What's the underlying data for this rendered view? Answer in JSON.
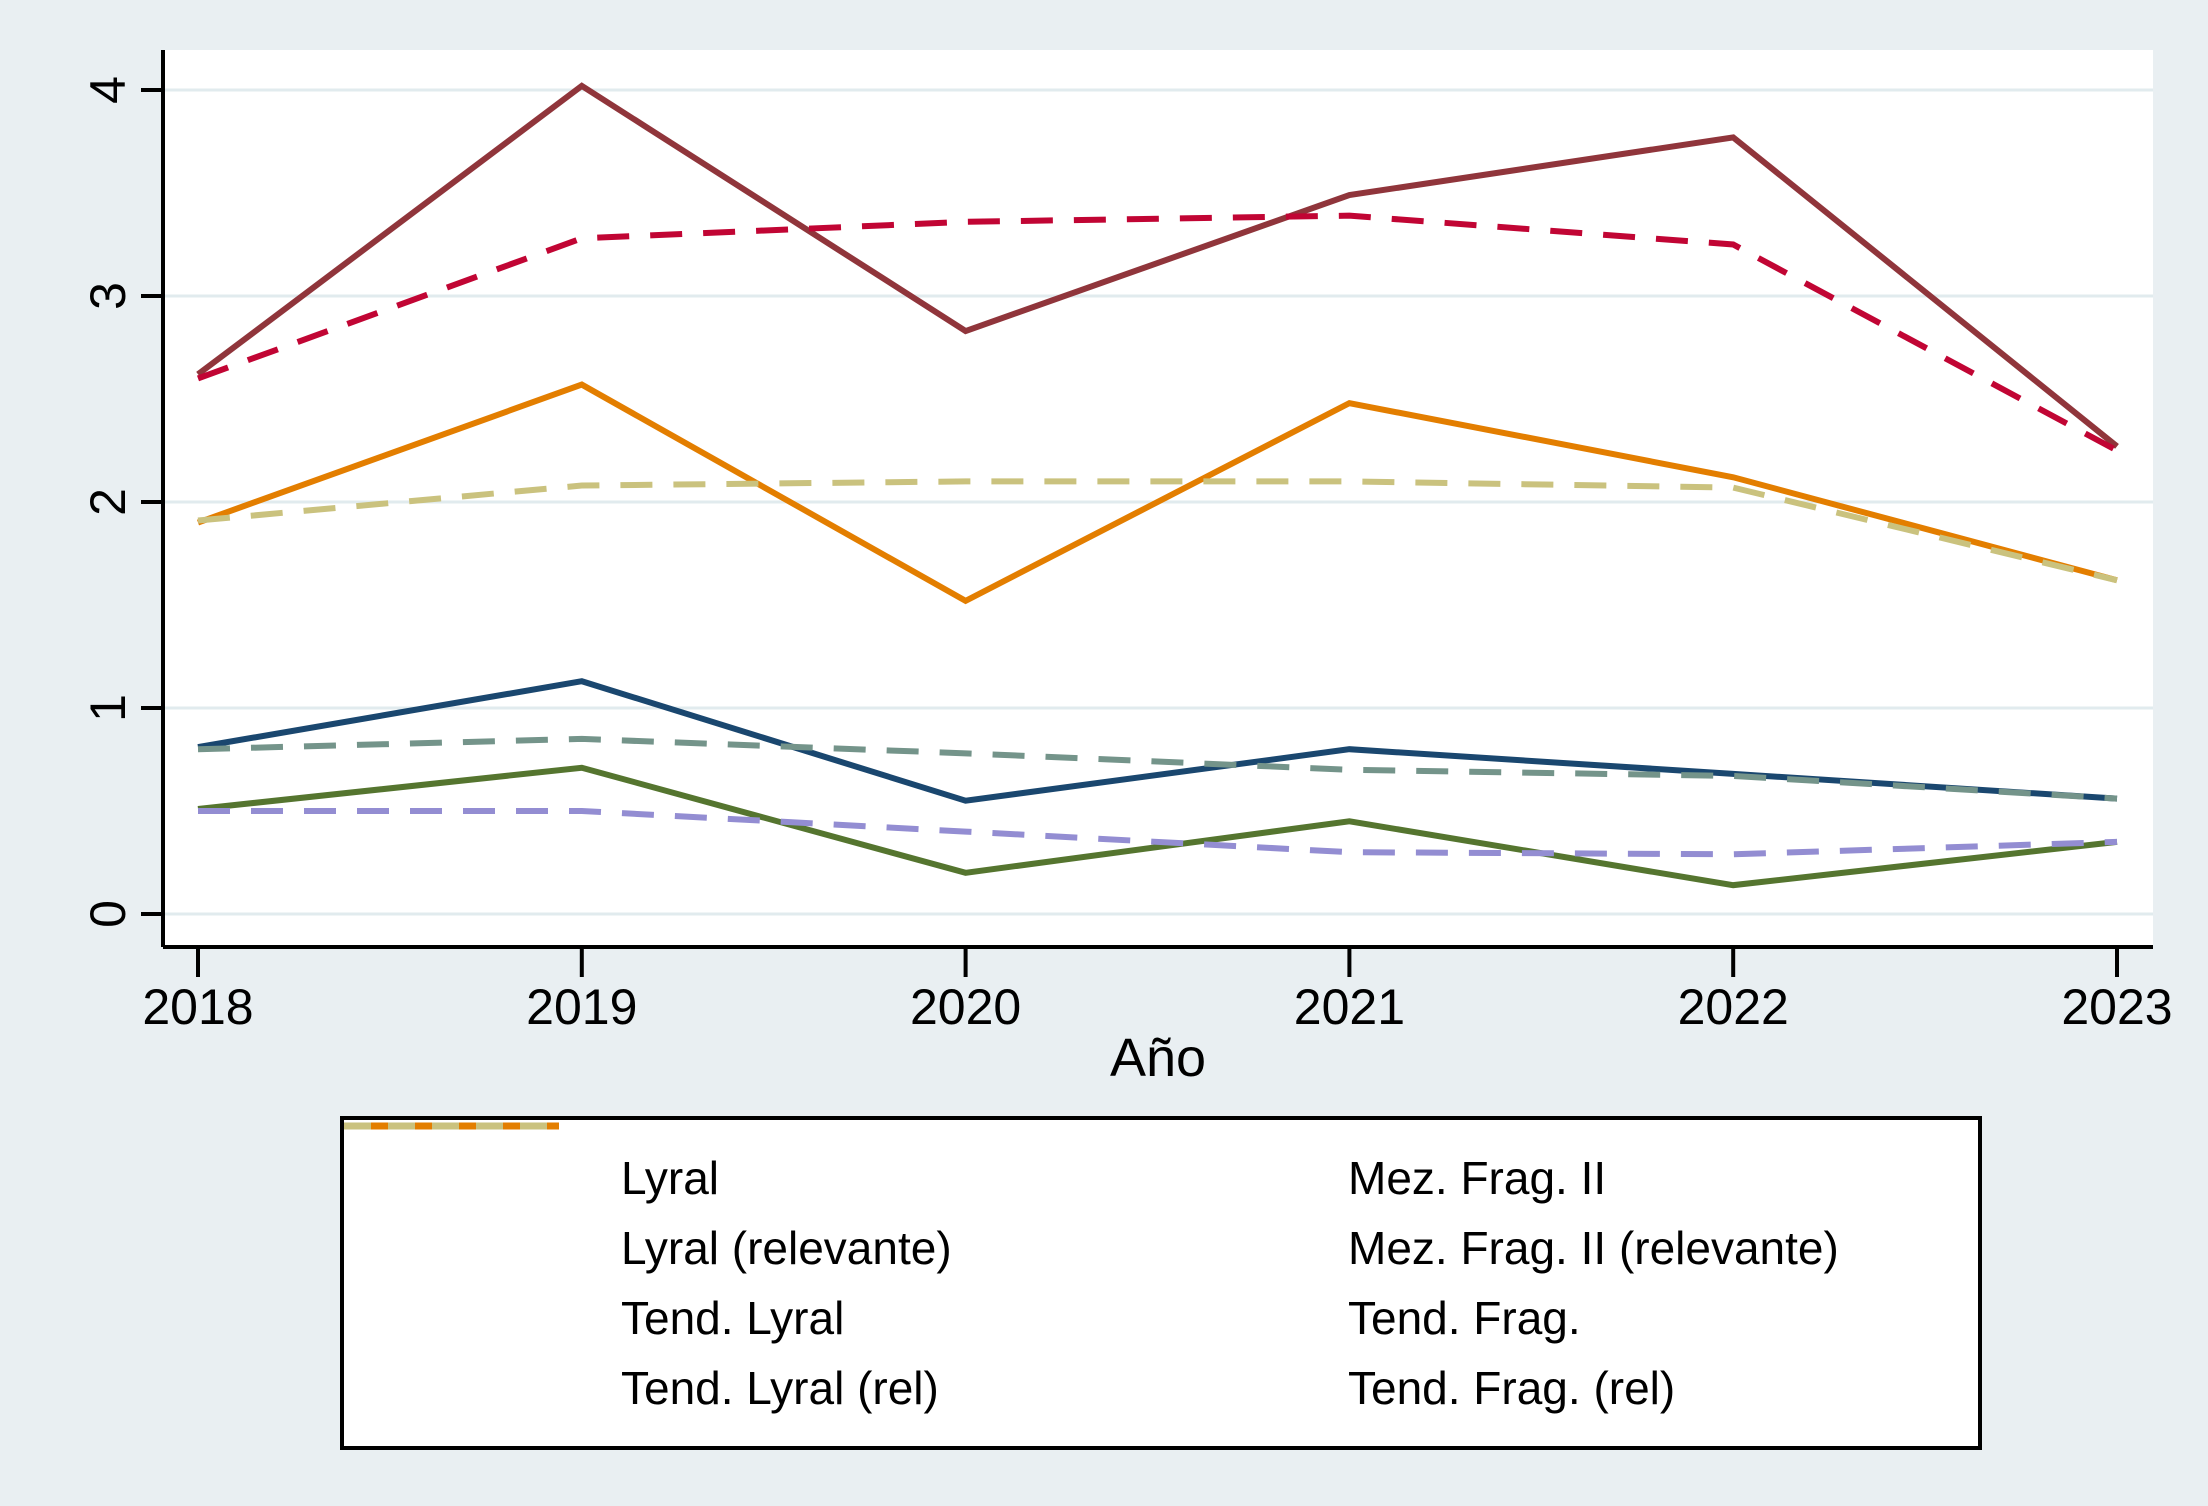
{
  "chart_data": {
    "type": "line",
    "title": "",
    "xlabel": "Año",
    "ylabel": "",
    "x": [
      2018,
      2019,
      2020,
      2021,
      2022,
      2023
    ],
    "x_tick_labels": [
      "2018",
      "2019",
      "2020",
      "2021",
      "2022",
      "2023"
    ],
    "ylim": [
      0,
      4
    ],
    "yticks": [
      0,
      1,
      2,
      3,
      4
    ],
    "y_tick_labels": [
      "0",
      "1",
      "2",
      "3",
      "4"
    ],
    "grid": true,
    "legend_position": "bottom",
    "series": [
      {
        "name": "Lyral",
        "color": "#1A476F",
        "style": "solid",
        "values": [
          0.81,
          1.13,
          0.55,
          0.8,
          0.68,
          0.56
        ]
      },
      {
        "name": "Mez. Frag. II",
        "color": "#90353B",
        "style": "solid",
        "values": [
          2.62,
          4.02,
          2.83,
          3.49,
          3.77,
          2.27
        ]
      },
      {
        "name": "Lyral (relevante)",
        "color": "#55752F",
        "style": "solid",
        "values": [
          0.51,
          0.71,
          0.2,
          0.45,
          0.14,
          0.35
        ]
      },
      {
        "name": "Mez. Frag. II (relevante)",
        "color": "#E37E00",
        "style": "solid",
        "values": [
          1.9,
          2.57,
          1.52,
          2.48,
          2.12,
          1.62
        ]
      },
      {
        "name": "Tend. Lyral",
        "color": "#74948A",
        "style": "dashed",
        "values": [
          0.8,
          0.85,
          0.78,
          0.7,
          0.67,
          0.56
        ]
      },
      {
        "name": "Tend. Frag.",
        "color": "#C10534",
        "style": "dashed",
        "values": [
          2.6,
          3.28,
          3.36,
          3.39,
          3.25,
          2.25
        ]
      },
      {
        "name": "Tend. Lyral (rel)",
        "color": "#938DD2",
        "style": "dashed",
        "values": [
          0.5,
          0.5,
          0.4,
          0.3,
          0.29,
          0.35
        ]
      },
      {
        "name": "Tend. Frag. (rel)",
        "color": "#CAC27E",
        "style": "dashed",
        "values": [
          1.91,
          2.08,
          2.1,
          2.1,
          2.07,
          1.62
        ]
      }
    ]
  },
  "colors": {
    "background": "#E9EFF2",
    "plot_background": "#FFFFFF",
    "gridline": "#E1EBEE",
    "axis": "#000000",
    "legend_border": "#000000",
    "legend_background": "#FFFFFF"
  }
}
